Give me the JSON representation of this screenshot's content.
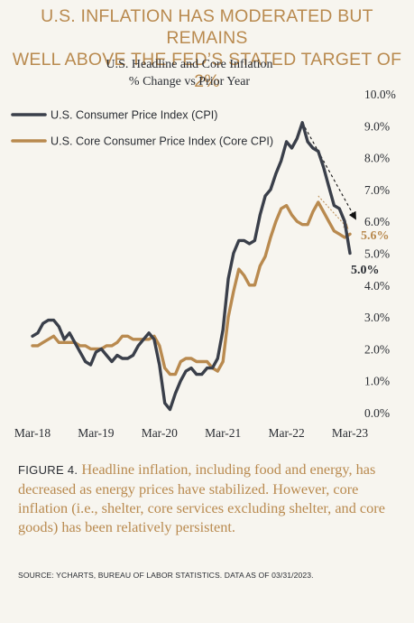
{
  "header": {
    "title_line1": "U.S. INFLATION HAS MODERATED BUT REMAINS",
    "title_line2": "WELL ABOVE THE FED’S STATED TARGET OF 2%"
  },
  "chart_data": {
    "type": "line",
    "title": "U.S. Headline and Core Inflation",
    "subtitle": "% Change vs Prior Year",
    "ylim": [
      0,
      10
    ],
    "y_ticks": [
      "0.0%",
      "1.0%",
      "2.0%",
      "3.0%",
      "4.0%",
      "5.0%",
      "6.0%",
      "7.0%",
      "8.0%",
      "9.0%",
      "10.0%"
    ],
    "x_ticks": [
      {
        "label": "Mar-18",
        "x": 0
      },
      {
        "label": "Mar-19",
        "x": 12
      },
      {
        "label": "Mar-20",
        "x": 24
      },
      {
        "label": "Mar-21",
        "x": 36
      },
      {
        "label": "Mar-22",
        "x": 48
      },
      {
        "label": "Mar-23",
        "x": 60
      }
    ],
    "legend_position": "top-left",
    "grid": false,
    "series": [
      {
        "name": "U.S. Consumer Price Index (CPI)",
        "color": "#3a3f4a",
        "end_label": "5.0%",
        "values": [
          2.4,
          2.5,
          2.8,
          2.9,
          2.9,
          2.7,
          2.3,
          2.5,
          2.2,
          1.9,
          1.6,
          1.5,
          1.9,
          2.0,
          1.8,
          1.6,
          1.8,
          1.7,
          1.7,
          1.8,
          2.1,
          2.3,
          2.5,
          2.3,
          1.5,
          0.3,
          0.1,
          0.6,
          1.0,
          1.3,
          1.4,
          1.2,
          1.2,
          1.4,
          1.4,
          1.7,
          2.6,
          4.2,
          5.0,
          5.4,
          5.4,
          5.3,
          5.4,
          6.2,
          6.8,
          7.0,
          7.5,
          7.9,
          8.5,
          8.3,
          8.6,
          9.1,
          8.5,
          8.3,
          8.2,
          7.7,
          7.1,
          6.5,
          6.4,
          6.0,
          5.0
        ],
        "x": [
          0,
          1,
          2,
          3,
          4,
          5,
          6,
          7,
          8,
          9,
          10,
          11,
          12,
          13,
          14,
          15,
          16,
          17,
          18,
          19,
          20,
          21,
          22,
          23,
          24,
          25,
          26,
          27,
          28,
          29,
          30,
          31,
          32,
          33,
          34,
          35,
          36,
          37,
          38,
          39,
          40,
          41,
          42,
          43,
          44,
          45,
          46,
          47,
          48,
          49,
          50,
          51,
          52,
          53,
          54,
          55,
          56,
          57,
          58,
          59,
          60
        ]
      },
      {
        "name": "U.S. Core Consumer Price Index (Core CPI)",
        "color": "#b98a4f",
        "end_label": "5.6%",
        "values": [
          2.1,
          2.1,
          2.2,
          2.3,
          2.4,
          2.2,
          2.2,
          2.2,
          2.2,
          2.1,
          2.1,
          2.0,
          2.0,
          2.0,
          2.1,
          2.1,
          2.2,
          2.4,
          2.4,
          2.3,
          2.3,
          2.3,
          2.3,
          2.4,
          2.1,
          1.4,
          1.2,
          1.2,
          1.6,
          1.7,
          1.7,
          1.6,
          1.6,
          1.6,
          1.4,
          1.3,
          1.6,
          3.0,
          3.8,
          4.5,
          4.3,
          4.0,
          4.0,
          4.6,
          4.9,
          5.5,
          6.0,
          6.4,
          6.5,
          6.2,
          6.0,
          5.9,
          5.9,
          6.3,
          6.6,
          6.3,
          6.0,
          5.7,
          5.6,
          5.5,
          5.6
        ],
        "x": [
          0,
          1,
          2,
          3,
          4,
          5,
          6,
          7,
          8,
          9,
          10,
          11,
          12,
          13,
          14,
          15,
          16,
          17,
          18,
          19,
          20,
          21,
          22,
          23,
          24,
          25,
          26,
          27,
          28,
          29,
          30,
          31,
          32,
          33,
          34,
          35,
          36,
          37,
          38,
          39,
          40,
          41,
          42,
          43,
          44,
          45,
          46,
          47,
          48,
          49,
          50,
          51,
          52,
          53,
          54,
          55,
          56,
          57,
          58,
          59,
          60
        ]
      }
    ],
    "annotations": [
      {
        "type": "dashed-arrow",
        "series": "U.S. Consumer Price Index (CPI)",
        "from": [
          51,
          9.1
        ],
        "to": [
          61,
          6.1
        ]
      },
      {
        "type": "dashed-arrow",
        "series": "U.S. Core Consumer Price Index (Core CPI)",
        "from": [
          54,
          6.8
        ],
        "to": [
          59.5,
          5.8
        ]
      }
    ]
  },
  "caption": {
    "label": "FIGURE 4.",
    "text": " Headline inflation, including food and energy, has decreased as energy prices have stabilized. However, core inflation (i.e., shelter, core services excluding shelter, and core goods) has been relatively persistent."
  },
  "source": "SOURCE: YCHARTS, BUREAU OF LABOR STATISTICS. DATA AS OF 03/31/2023."
}
